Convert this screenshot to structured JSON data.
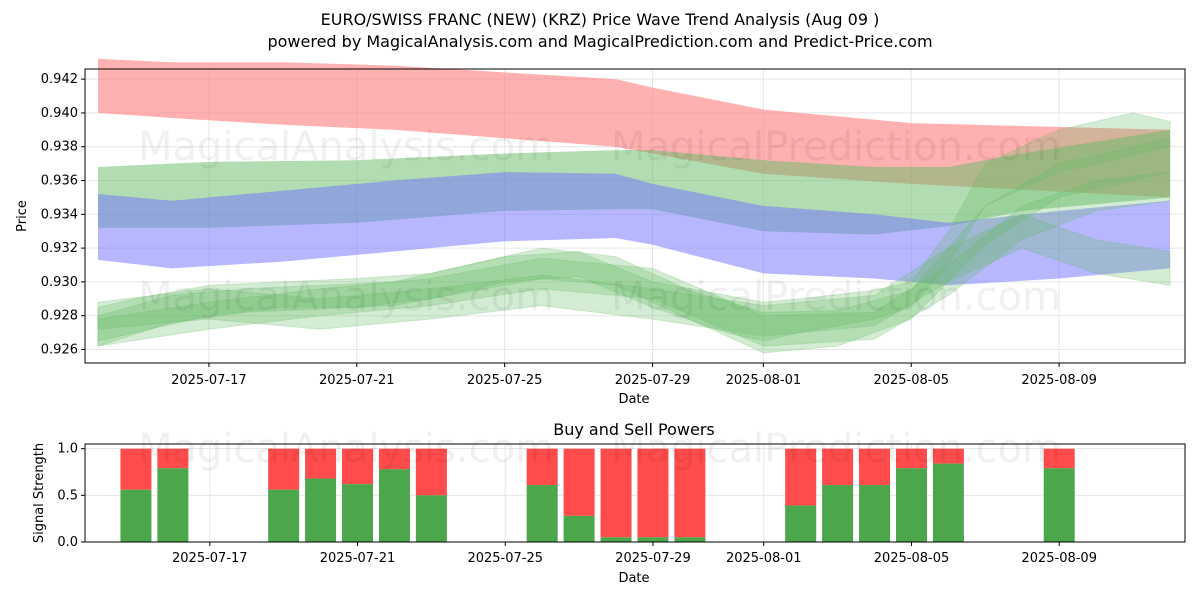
{
  "title_line1": "EURO/SWISS FRANC (NEW) (KRZ) Price Wave Trend Analysis (Aug 09 )",
  "title_line2": "powered by MagicalAnalysis.com and MagicalPrediction.com and Predict-Price.com",
  "watermarks": [
    "MagicalAnalysis.com",
    "MagicalPrediction.com"
  ],
  "colors": {
    "red_band": "#ff7f7f",
    "green_band": "#66bb66",
    "blue_band": "#6f6fff",
    "buy": "#4ca64c",
    "sell": "#ff4b4b",
    "grid": "#e6e6e6"
  },
  "chart_data": [
    {
      "type": "area",
      "title": "",
      "xlabel": "Date",
      "ylabel": "Price",
      "x_domain": [
        "2025-07-14",
        "2025-08-12"
      ],
      "ylim": [
        0.9252,
        0.9426
      ],
      "x_ticks": [
        "2025-07-17",
        "2025-07-21",
        "2025-07-25",
        "2025-07-29",
        "2025-08-01",
        "2025-08-05",
        "2025-08-09"
      ],
      "y_ticks": [
        0.926,
        0.928,
        0.93,
        0.932,
        0.934,
        0.936,
        0.938,
        0.94,
        0.942
      ],
      "grid": true,
      "bands": [
        {
          "color": "red",
          "x": [
            "2025-07-14",
            "2025-07-16",
            "2025-07-19",
            "2025-07-22",
            "2025-07-25",
            "2025-07-28",
            "2025-07-29",
            "2025-08-01",
            "2025-08-05",
            "2025-08-12"
          ],
          "upper": [
            0.9432,
            0.943,
            0.943,
            0.9428,
            0.9424,
            0.942,
            0.9415,
            0.9402,
            0.9394,
            0.939
          ],
          "lower": [
            0.94,
            0.9397,
            0.9393,
            0.939,
            0.9385,
            0.938,
            0.9376,
            0.9364,
            0.9358,
            0.935
          ]
        },
        {
          "color": "green",
          "x": [
            "2025-07-14",
            "2025-07-17",
            "2025-07-21",
            "2025-07-25",
            "2025-07-28",
            "2025-07-29",
            "2025-08-01",
            "2025-08-04",
            "2025-08-06",
            "2025-08-08",
            "2025-08-12"
          ],
          "upper": [
            0.9368,
            0.9371,
            0.9372,
            0.9376,
            0.9378,
            0.9378,
            0.9372,
            0.9368,
            0.9368,
            0.9376,
            0.939
          ],
          "lower": [
            0.9332,
            0.9332,
            0.9335,
            0.9342,
            0.9343,
            0.9343,
            0.933,
            0.9328,
            0.9333,
            0.9342,
            0.935
          ]
        },
        {
          "color": "blue",
          "x": [
            "2025-07-14",
            "2025-07-16",
            "2025-07-19",
            "2025-07-22",
            "2025-07-25",
            "2025-07-28",
            "2025-07-29",
            "2025-08-01",
            "2025-08-04",
            "2025-08-06",
            "2025-08-09",
            "2025-08-12"
          ],
          "upper": [
            0.9352,
            0.9348,
            0.9354,
            0.936,
            0.9365,
            0.9364,
            0.9358,
            0.9345,
            0.934,
            0.9335,
            0.9342,
            0.9348
          ],
          "lower": [
            0.9313,
            0.9308,
            0.9312,
            0.9318,
            0.9324,
            0.9326,
            0.9322,
            0.9305,
            0.9302,
            0.9298,
            0.9302,
            0.9308
          ]
        }
      ],
      "wave_bands": [
        {
          "x": [
            "2025-07-14",
            "2025-07-15",
            "2025-07-17",
            "2025-07-19",
            "2025-07-21",
            "2025-07-23",
            "2025-07-25",
            "2025-07-27",
            "2025-07-29",
            "2025-07-31",
            "2025-08-01",
            "2025-08-02",
            "2025-08-04",
            "2025-08-05",
            "2025-08-06",
            "2025-08-07",
            "2025-08-09",
            "2025-08-11",
            "2025-08-12"
          ],
          "upper": [
            0.9285,
            0.929,
            0.9298,
            0.93,
            0.9302,
            0.9305,
            0.9315,
            0.9318,
            0.93,
            0.9292,
            0.9288,
            0.929,
            0.9295,
            0.93,
            0.933,
            0.937,
            0.939,
            0.94,
            0.9395
          ],
          "lower": [
            0.9265,
            0.927,
            0.928,
            0.9285,
            0.9285,
            0.929,
            0.93,
            0.9303,
            0.9285,
            0.927,
            0.9265,
            0.927,
            0.9278,
            0.9285,
            0.931,
            0.9345,
            0.9365,
            0.9375,
            0.938
          ]
        },
        {
          "x": [
            "2025-07-14",
            "2025-07-16",
            "2025-07-18",
            "2025-07-20",
            "2025-07-22",
            "2025-07-24",
            "2025-07-26",
            "2025-07-28",
            "2025-07-30",
            "2025-08-01",
            "2025-08-03",
            "2025-08-05",
            "2025-08-07",
            "2025-08-09",
            "2025-08-12"
          ],
          "upper": [
            0.928,
            0.9292,
            0.9296,
            0.9298,
            0.93,
            0.931,
            0.932,
            0.9315,
            0.9295,
            0.9282,
            0.9283,
            0.9295,
            0.9345,
            0.937,
            0.9385
          ],
          "lower": [
            0.9262,
            0.9276,
            0.9282,
            0.9284,
            0.9286,
            0.9294,
            0.9302,
            0.9298,
            0.9278,
            0.9258,
            0.9262,
            0.9278,
            0.9322,
            0.935,
            0.9365
          ]
        },
        {
          "x": [
            "2025-07-14",
            "2025-07-17",
            "2025-07-20",
            "2025-07-23",
            "2025-07-26",
            "2025-07-29",
            "2025-08-01",
            "2025-08-04",
            "2025-08-06",
            "2025-08-08",
            "2025-08-10",
            "2025-08-12"
          ],
          "upper": [
            0.9278,
            0.9288,
            0.9296,
            0.9302,
            0.9314,
            0.9308,
            0.928,
            0.9282,
            0.931,
            0.9345,
            0.936,
            0.9365
          ],
          "lower": [
            0.9262,
            0.9272,
            0.928,
            0.9286,
            0.9296,
            0.929,
            0.9262,
            0.9266,
            0.9292,
            0.9325,
            0.9342,
            0.9348
          ]
        },
        {
          "x": [
            "2025-07-14",
            "2025-07-17",
            "2025-07-20",
            "2025-07-23",
            "2025-07-26",
            "2025-07-29",
            "2025-08-01",
            "2025-08-04",
            "2025-08-06",
            "2025-08-08",
            "2025-08-10",
            "2025-08-12"
          ],
          "upper": [
            0.9288,
            0.9296,
            0.929,
            0.9296,
            0.9304,
            0.9296,
            0.9286,
            0.9292,
            0.932,
            0.934,
            0.9325,
            0.9318
          ],
          "lower": [
            0.9272,
            0.9278,
            0.9272,
            0.9278,
            0.9286,
            0.9278,
            0.9268,
            0.9274,
            0.93,
            0.932,
            0.9305,
            0.9298
          ]
        }
      ]
    },
    {
      "type": "bar",
      "title": "Buy and Sell Powers",
      "xlabel": "Date",
      "ylabel": "Signal Strength",
      "ylim": [
        0,
        1.05
      ],
      "y_ticks": [
        "0.0",
        "0.5",
        "1.0"
      ],
      "x_ticks": [
        "2025-07-17",
        "2025-07-21",
        "2025-07-25",
        "2025-07-29",
        "2025-08-01",
        "2025-08-05",
        "2025-08-09"
      ],
      "x_domain": [
        "2025-07-14",
        "2025-08-12"
      ],
      "grid": true,
      "series": [
        {
          "name": "",
          "type": "buy"
        },
        {
          "name": "",
          "type": "sell"
        }
      ],
      "bars": [
        {
          "date": "2025-07-15",
          "buy": 0.56
        },
        {
          "date": "2025-07-16",
          "buy": 0.79
        },
        {
          "date": "2025-07-19",
          "buy": 0.56
        },
        {
          "date": "2025-07-20",
          "buy": 0.68
        },
        {
          "date": "2025-07-21",
          "buy": 0.62
        },
        {
          "date": "2025-07-22",
          "buy": 0.78
        },
        {
          "date": "2025-07-23",
          "buy": 0.5
        },
        {
          "date": "2025-07-26",
          "buy": 0.61
        },
        {
          "date": "2025-07-27",
          "buy": 0.28
        },
        {
          "date": "2025-07-28",
          "buy": 0.05
        },
        {
          "date": "2025-07-29",
          "buy": 0.05
        },
        {
          "date": "2025-07-30",
          "buy": 0.05
        },
        {
          "date": "2025-08-02",
          "buy": 0.39
        },
        {
          "date": "2025-08-03",
          "buy": 0.61
        },
        {
          "date": "2025-08-04",
          "buy": 0.61
        },
        {
          "date": "2025-08-05",
          "buy": 0.79
        },
        {
          "date": "2025-08-06",
          "buy": 0.84
        },
        {
          "date": "2025-08-09",
          "buy": 0.79
        }
      ]
    }
  ]
}
